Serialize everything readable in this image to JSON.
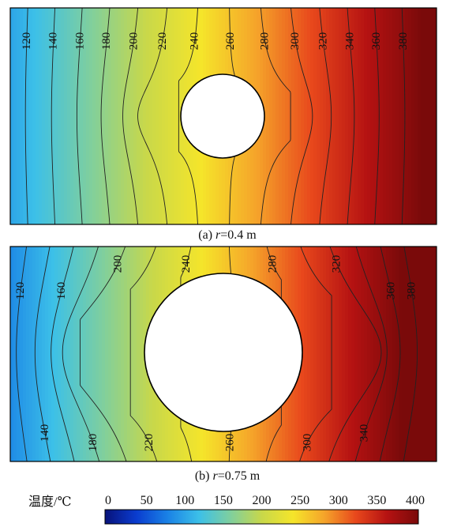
{
  "chart_data": [
    {
      "type": "heatmap",
      "subplot": "(a)",
      "caption_prefix": "(a) ",
      "caption_var": "r",
      "caption_value": "=0.4 m",
      "radius_m": 0.4,
      "contour_levels": [
        120,
        140,
        160,
        180,
        200,
        220,
        240,
        260,
        280,
        300,
        320,
        340,
        360,
        380
      ],
      "contour_labels_top": [
        "120",
        "140",
        "160",
        "180",
        "200",
        "220",
        "240",
        "260",
        "280",
        "300",
        "320",
        "340",
        "360",
        "380"
      ],
      "contour_labels_bottom": []
    },
    {
      "type": "heatmap",
      "subplot": "(b)",
      "caption_prefix": "(b) ",
      "caption_var": "r",
      "caption_value": "=0.75 m",
      "radius_m": 0.75,
      "contour_levels": [
        120,
        140,
        160,
        180,
        200,
        220,
        240,
        260,
        280,
        300,
        320,
        340,
        360,
        380
      ],
      "contour_labels_top": [
        "120",
        "160",
        "200",
        "240",
        "280",
        "320",
        "360",
        "380"
      ],
      "contour_labels_bottom": [
        "140",
        "180",
        "220",
        "260",
        "300",
        "340"
      ]
    }
  ],
  "colorbar": {
    "label": "温度/℃",
    "min": 0,
    "max": 400,
    "ticks": [
      "0",
      "50",
      "100",
      "150",
      "200",
      "250",
      "300",
      "350",
      "400"
    ],
    "colors": [
      "#08127a",
      "#0a3ccf",
      "#1a82e6",
      "#3cc0e8",
      "#7fcf9e",
      "#c8d84a",
      "#f5e52a",
      "#f5a42a",
      "#e8481c",
      "#b51212",
      "#7a0a0a"
    ]
  }
}
